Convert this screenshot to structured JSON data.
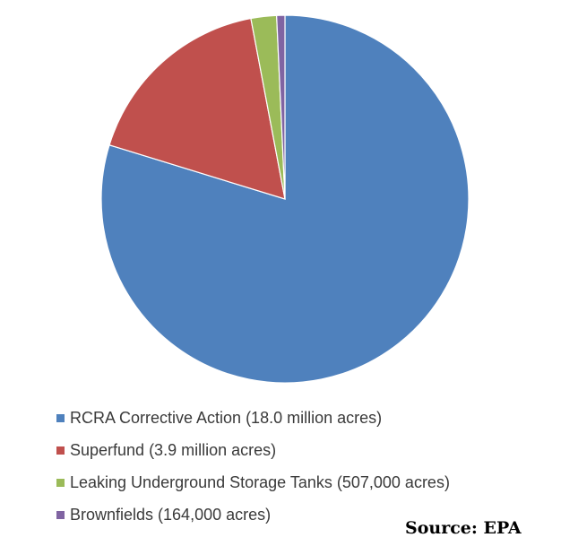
{
  "chart_data": {
    "type": "pie",
    "title": "",
    "unit": "acres",
    "slices": [
      {
        "label": "RCRA Corrective Action (18.0 million acres)",
        "value": 18000000,
        "color": "#4f81bd"
      },
      {
        "label": "Superfund (3.9 million acres)",
        "value": 3900000,
        "color": "#c0504d"
      },
      {
        "label": "Leaking Underground Storage Tanks (507,000 acres)",
        "value": 507000,
        "color": "#9bbb59"
      },
      {
        "label": "Brownfields (164,000 acres)",
        "value": 164000,
        "color": "#8064a2"
      }
    ],
    "start_angle_deg": 0,
    "direction": "clockwise",
    "legend_position": "bottom-left"
  },
  "source_text": "Source: EPA"
}
